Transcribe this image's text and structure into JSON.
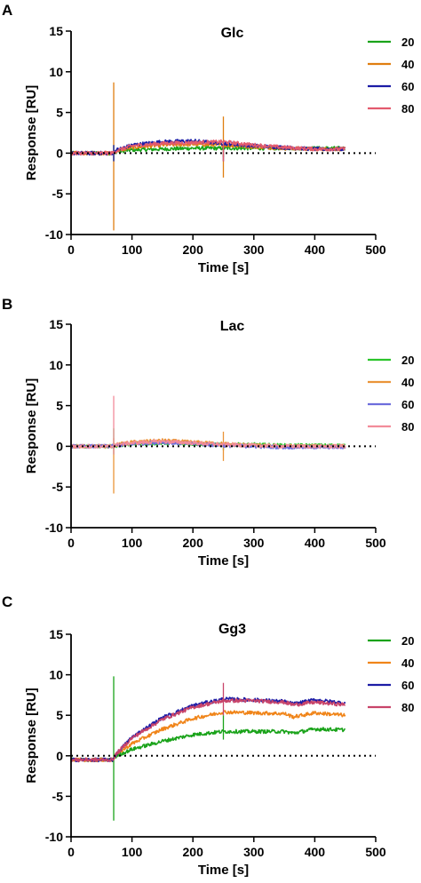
{
  "figure": {
    "panels": [
      {
        "letter": "A",
        "title": "Glc"
      },
      {
        "letter": "B",
        "title": "Lac"
      },
      {
        "letter": "C",
        "title": "Gg3"
      }
    ]
  },
  "chart_data": [
    {
      "type": "line",
      "panel": "A",
      "title": "Glc",
      "xlabel": "Time [s]",
      "ylabel": "Response [RU]",
      "xlim": [
        0,
        500
      ],
      "ylim": [
        -10,
        15
      ],
      "xticks": [
        0,
        100,
        200,
        300,
        400,
        500
      ],
      "yticks": [
        -10,
        -5,
        0,
        5,
        10,
        15
      ],
      "baseline": 0,
      "legend_position": "right",
      "series": [
        {
          "name": "20",
          "color": "#1aa31a",
          "x": [
            0,
            68,
            75,
            100,
            150,
            200,
            250,
            300,
            350,
            400,
            450
          ],
          "y": [
            0,
            0,
            0.2,
            0.4,
            0.5,
            0.6,
            0.6,
            0.6,
            0.6,
            0.6,
            0.6
          ],
          "spikes": [
            [
              70,
              -1,
              1
            ],
            [
              250,
              -0.5,
              0.5
            ]
          ]
        },
        {
          "name": "40",
          "color": "#e07e10",
          "x": [
            0,
            68,
            75,
            100,
            150,
            200,
            250,
            300,
            350,
            400,
            450
          ],
          "y": [
            0,
            0,
            0.3,
            0.7,
            1.0,
            1.1,
            1.0,
            0.8,
            0.6,
            0.5,
            0.5
          ],
          "spikes": [
            [
              70,
              -9.5,
              8.7
            ],
            [
              250,
              -3,
              4.5
            ]
          ]
        },
        {
          "name": "60",
          "color": "#1c1ca6",
          "x": [
            0,
            68,
            75,
            100,
            150,
            200,
            250,
            300,
            350,
            400,
            450
          ],
          "y": [
            0,
            0,
            0.4,
            1.0,
            1.4,
            1.5,
            1.2,
            0.9,
            0.7,
            0.5,
            0.5
          ],
          "spikes": [
            [
              70,
              -1,
              1
            ],
            [
              250,
              -1,
              1.5
            ]
          ]
        },
        {
          "name": "80",
          "color": "#e35a6e",
          "x": [
            0,
            68,
            75,
            100,
            150,
            200,
            250,
            300,
            350,
            400,
            450
          ],
          "y": [
            0,
            0,
            0.3,
            0.9,
            1.2,
            1.3,
            1.4,
            1.0,
            0.7,
            0.5,
            0.5
          ],
          "spikes": [
            [
              250,
              -1,
              1.5
            ]
          ]
        }
      ]
    },
    {
      "type": "line",
      "panel": "B",
      "title": "Lac",
      "xlabel": "Time [s]",
      "ylabel": "Response [RU]",
      "xlim": [
        0,
        500
      ],
      "ylim": [
        -10,
        15
      ],
      "xticks": [
        0,
        100,
        200,
        300,
        400,
        500
      ],
      "yticks": [
        -10,
        -5,
        0,
        5,
        10,
        15
      ],
      "baseline": 0,
      "legend_position": "right",
      "series": [
        {
          "name": "20",
          "color": "#2bc42b",
          "x": [
            0,
            68,
            75,
            100,
            150,
            200,
            250,
            300,
            350,
            400,
            450
          ],
          "y": [
            0,
            0,
            0.1,
            0.3,
            0.4,
            0.3,
            0.2,
            0.2,
            0.1,
            0.1,
            0.1
          ],
          "spikes": [
            [
              70,
              -1,
              2.2
            ],
            [
              250,
              -0.5,
              0.5
            ]
          ]
        },
        {
          "name": "40",
          "color": "#ea9438",
          "x": [
            0,
            68,
            75,
            100,
            150,
            200,
            250,
            300,
            350,
            400,
            450
          ],
          "y": [
            0,
            0,
            0.2,
            0.5,
            0.7,
            0.5,
            0.3,
            0.1,
            0,
            0,
            0
          ],
          "spikes": [
            [
              70,
              -5.8,
              1
            ],
            [
              250,
              -1.8,
              1.8
            ]
          ]
        },
        {
          "name": "60",
          "color": "#6d6ddc",
          "x": [
            0,
            68,
            75,
            100,
            150,
            200,
            250,
            300,
            350,
            400,
            450
          ],
          "y": [
            0,
            0,
            0.1,
            0.3,
            0.5,
            0.3,
            0.1,
            0,
            -0.1,
            -0.1,
            -0.1
          ],
          "spikes": []
        },
        {
          "name": "80",
          "color": "#f28c9a",
          "x": [
            0,
            68,
            75,
            100,
            150,
            200,
            250,
            300,
            350,
            400,
            450
          ],
          "y": [
            0,
            0,
            0.2,
            0.4,
            0.6,
            0.4,
            0.2,
            0.1,
            0,
            0,
            0
          ],
          "spikes": [
            [
              70,
              -1,
              6.2
            ]
          ]
        }
      ]
    },
    {
      "type": "line",
      "panel": "C",
      "title": "Gg3",
      "xlabel": "Time [s]",
      "ylabel": "Response [RU]",
      "xlim": [
        0,
        500
      ],
      "ylim": [
        -10,
        15
      ],
      "xticks": [
        0,
        100,
        200,
        300,
        400,
        500
      ],
      "yticks": [
        -10,
        -5,
        0,
        5,
        10,
        15
      ],
      "baseline": 0,
      "legend_position": "right",
      "series": [
        {
          "name": "20",
          "color": "#1aa31a",
          "x": [
            0,
            68,
            75,
            100,
            150,
            200,
            250,
            300,
            350,
            365,
            400,
            450
          ],
          "y": [
            -0.5,
            -0.5,
            0,
            0.8,
            1.8,
            2.6,
            3.0,
            3.0,
            3.0,
            2.8,
            3.3,
            3.2
          ],
          "spikes": [
            [
              70,
              -8,
              9.8
            ],
            [
              250,
              2,
              5
            ]
          ]
        },
        {
          "name": "40",
          "color": "#f0851a",
          "x": [
            0,
            68,
            75,
            100,
            150,
            200,
            250,
            300,
            350,
            365,
            400,
            450
          ],
          "y": [
            -0.5,
            -0.5,
            0.2,
            1.5,
            3.3,
            4.6,
            5.4,
            5.3,
            5.2,
            4.8,
            5.3,
            5.0
          ],
          "spikes": []
        },
        {
          "name": "60",
          "color": "#1c1ca6",
          "x": [
            0,
            68,
            75,
            100,
            150,
            200,
            250,
            300,
            350,
            365,
            400,
            450
          ],
          "y": [
            -0.5,
            -0.5,
            0.3,
            2.3,
            4.7,
            6.2,
            7.0,
            6.9,
            6.7,
            6.4,
            6.9,
            6.5
          ],
          "spikes": []
        },
        {
          "name": "80",
          "color": "#c8446a",
          "x": [
            0,
            68,
            75,
            100,
            150,
            200,
            250,
            300,
            350,
            365,
            400,
            450
          ],
          "y": [
            -0.5,
            -0.5,
            0.3,
            2.2,
            4.5,
            6.0,
            6.8,
            6.8,
            6.6,
            6.3,
            6.6,
            6.3
          ],
          "spikes": [
            [
              250,
              5,
              9
            ]
          ]
        }
      ]
    }
  ]
}
